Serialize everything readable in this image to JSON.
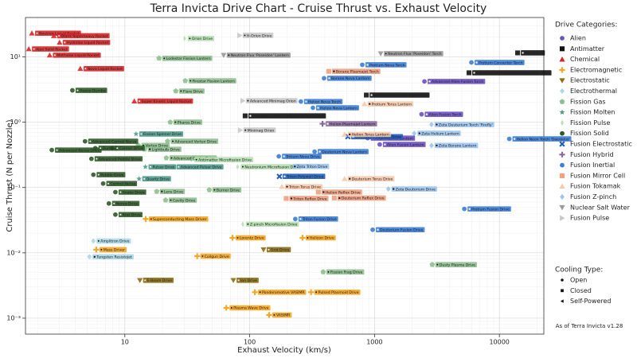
{
  "chart_data": {
    "type": "scatter",
    "title": "Terra Invicta Drive Chart - Cruise Thrust vs. Exhaust Velocity",
    "xlabel": "Exhaust Velocity (km/s)",
    "ylabel": "Cruise Thrust (N per Nozzle)",
    "log_x": true,
    "log_y": true,
    "grid": true,
    "xlim": [
      1.6,
      22700
    ],
    "ylim": [
      0.00057,
      40
    ],
    "xticks": [
      10,
      100,
      1000,
      10000
    ],
    "yticks": [
      {
        "value": 0.001,
        "label": "10⁻³"
      },
      {
        "value": 0.01,
        "label": "10⁻²"
      },
      {
        "value": 0.1,
        "label": "10⁻¹"
      },
      {
        "value": 1,
        "label": "10⁰"
      },
      {
        "value": 10,
        "label": "10¹"
      }
    ],
    "legend_title": "Drive Categories:",
    "legend_position": "right",
    "cooling_title": "Cooling Type:",
    "cooling_types": [
      {
        "name": "Open",
        "marker": "circle"
      },
      {
        "name": "Closed",
        "marker": "square"
      },
      {
        "name": "Self-Powered",
        "marker": "tri-left"
      }
    ],
    "footnote": "As of Terra Invicta v1.28",
    "series": [
      {
        "name": "Alien",
        "color": "#6a4fc7",
        "marker": "circle",
        "x": [
          2510,
          2380,
          880,
          1100
        ],
        "values": [
          4.2,
          1.32,
          0.57,
          0.456
        ],
        "labels": [
          "Advanced Alien Fusion Torch",
          "Alien Fusion Torch",
          "Alien Plasma Lantern",
          "Alien Fusion Lantern"
        ],
        "cooling": [
          "Closed",
          "Closed",
          "Closed",
          "Closed"
        ]
      },
      {
        "name": "Antimatter",
        "color": "#111111",
        "marker": "square",
        "x": [
          14000,
          5710,
          860,
          92
        ],
        "values": [
          11.5,
          5.7,
          2.6,
          1.25
        ],
        "labels": [
          "Pion Torch",
          "Advanced Antimatter Plasma Core Torch",
          "Antimatter Plasma Core Torch",
          "Antimatter Pulsed Plasma Core Lantern"
        ],
        "cooling": [
          "Closed",
          "Closed",
          "Closed",
          "Closed"
        ]
      },
      {
        "name": "Chemical",
        "color": "#d62728",
        "marker": "tri-up",
        "x": [
          1.8,
          2.7,
          3.0,
          1.7,
          2.5,
          4.4,
          11.9
        ],
        "values": [
          23,
          21,
          16.6,
          13.2,
          10.6,
          6.6,
          2.1
        ],
        "labels": [
          "Neutron Liquid Rocket",
          "Olaris Superheavy Rocket",
          "Hydrolox Liquid Rocket",
          "Ajax Solid Rocket",
          "Methalox Liquid Rocket",
          "Nova Liquid Rocket",
          "Super Kinetic Liquid Rocket"
        ],
        "cooling": [
          "Open",
          "Open",
          "Open",
          "Open",
          "Open",
          "Open",
          "Open"
        ]
      },
      {
        "name": "Electromagnetic",
        "color": "#f5a623",
        "marker": "plus",
        "x": [
          14.7,
          72.8,
          265,
          5.9,
          38,
          110,
          310,
          65,
          143
        ],
        "values": [
          0.033,
          0.017,
          0.017,
          0.0112,
          0.0089,
          0.0025,
          0.0025,
          0.00144,
          0.00112
        ],
        "labels": [
          "Superconducting Mass Driver",
          "Lorentz Drive",
          "Helicon Drive",
          "Mass Driver",
          "Coilgun Drive",
          "Ponderomotive VASIMR",
          "Pulsed Plasmoid Drive",
          "Plasma Wave Drive",
          "VASIMR"
        ],
        "cooling": [
          "Self-Powered",
          "Open",
          "Open",
          "Open",
          "Self-Powered",
          "Open",
          "Open",
          "Open",
          "Open"
        ]
      },
      {
        "name": "Electrostatic",
        "color": "#8b6d14",
        "marker": "tri-down",
        "x": [
          129,
          74,
          13.2
        ],
        "values": [
          0.0112,
          0.0038,
          0.0038
        ],
        "labels": [
          "Grid Drive",
          "Ion Drive",
          "E-Beam Drive"
        ],
        "cooling": [
          "Open",
          "Open",
          "Open"
        ]
      },
      {
        "name": "Electrothermal",
        "color": "#a9d8e6",
        "marker": "diamond",
        "x": [
          5.2,
          5.6
        ],
        "values": [
          0.0087,
          0.0152
        ],
        "labels": [
          "Tungsten Resistojet",
          "Amplitron Drive"
        ],
        "cooling": [
          "Closed",
          "Open"
        ]
      },
      {
        "name": "Fission Gas",
        "color": "#8fbf8f",
        "marker": "pentagon",
        "x": [
          18.8,
          30.5,
          25.6,
          23.1,
          12.8,
          22,
          14.4,
          21.5,
          18,
          21.2,
          47.5,
          2900,
          388
        ],
        "values": [
          9.5,
          4.3,
          2.99,
          1.0,
          0.44,
          0.51,
          0.385,
          0.283,
          0.087,
          0.064,
          0.092,
          0.0066,
          0.0051
        ],
        "labels": [
          "Lodestar Fission Lantern",
          "Firestar Fission Lantern",
          "Flare Drive",
          "Pharos Drive",
          "Vortex Drive",
          "Advanced Vortex Drive",
          "Lightbulb Drive",
          "Advanced Cavity Drive",
          "Lens Drive",
          "Cavity Drive",
          "Burner Drive",
          "Dusty Plasma Drive",
          "Fission Frag Drive"
        ],
        "cooling": [
          "Open",
          "Open",
          "Open",
          "Open",
          "Open",
          "Open",
          "Closed",
          "Open",
          "Closed",
          "Open",
          "Open",
          "Open",
          "Open"
        ]
      },
      {
        "name": "Fission Molten",
        "color": "#4f9a8a",
        "marker": "star",
        "x": [
          12.3,
          14.6,
          24.5,
          13
        ],
        "values": [
          0.66,
          0.207,
          0.207,
          0.136
        ],
        "labels": [
          "Fission Spinner Drive",
          "Pulsar Drive",
          "Advanced Pulsar Drive",
          "Quartz Drive"
        ],
        "cooling": [
          "Open",
          "Open",
          "Open",
          "Open"
        ]
      },
      {
        "name": "Fission Pulse",
        "color": "#b5e0b0",
        "marker": "thin-diamond",
        "x": [
          30.1,
          34,
          80,
          88
        ],
        "values": [
          19.1,
          0.267,
          0.208,
          0.0275
        ],
        "labels": [
          "Orion Drive",
          "Antimatter Microfission Drive",
          "Neutronium Microfission Drive",
          "Z-pinch Microfission Drive"
        ],
        "cooling": [
          "Open",
          "Open",
          "Open",
          "Open"
        ]
      },
      {
        "name": "Fission Solid",
        "color": "#2d5a27",
        "marker": "circle",
        "x": [
          3.8,
          4.8,
          2.6,
          5.8,
          7.9,
          5.4,
          5.6,
          6.7,
          8.4,
          7.45,
          8.4
        ],
        "values": [
          3.07,
          0.51,
          0.374,
          0.4,
          0.4,
          0.275,
          0.157,
          0.115,
          0.085,
          0.057,
          0.0385
        ],
        "labels": [
          "Heavy Dumbo",
          "Advanced Carmel Nerva",
          "Advanced Nerva Drive",
          "Dumbo",
          "Carmel Drive",
          "Advanced Pebble Drive",
          "Pebble Drive",
          "Carmel Nerva",
          "Snake Drive",
          "Nerva Drive",
          "Kiwi Drive"
        ],
        "cooling": [
          "Open",
          "Open",
          "Open",
          "Open",
          "Open",
          "Open",
          "Open",
          "Open",
          "Open",
          "Open",
          "Open"
        ]
      },
      {
        "name": "Fusion Electrostatic",
        "color": "#1f5fbf",
        "marker": "x",
        "x": [
          173,
          612
        ],
        "values": [
          0.148,
          0.6
        ],
        "labels": [
          "Triton Polywell Drive",
          "Deuterium Polywell Drive"
        ],
        "cooling": [
          "Closed",
          "Closed"
        ]
      },
      {
        "name": "Fusion Hybrid",
        "color": "#8a6a9e",
        "marker": "plus",
        "x": [
          383
        ],
        "values": [
          0.945
        ],
        "labels": [
          "Helion Plasmajet Lantern"
        ],
        "cooling": [
          "Closed"
        ]
      },
      {
        "name": "Fusion Inertial",
        "color": "#3b7dd8",
        "marker": "circle",
        "x": [
          798,
          5970,
          394,
          321,
          257,
          331,
          171,
          232,
          966,
          5240,
          12000
        ],
        "values": [
          7.55,
          8.2,
          4.7,
          1.66,
          2.07,
          0.354,
          0.3,
          0.033,
          0.0226,
          0.047,
          0.555
        ],
        "labels": [
          "Protium Nova Torch",
          "Protium Converter Torch",
          "Borane Nova Lantern",
          "Helion Nova Lantern",
          "Helion Nova Torch",
          "Deuterium Nova Lantern",
          "Tritium Nova Drive",
          "Triton Fusion Drive",
          "Deuterium Fusion Drive",
          "Protium Fusion Drive",
          "Helion Neon Torch 'Daedalus'"
        ],
        "cooling": [
          "Closed",
          "Closed",
          "Closed",
          "Closed",
          "Closed",
          "Closed",
          "Closed",
          "Closed",
          "Closed",
          "Closed",
          "Closed"
        ]
      },
      {
        "name": "Fusion Mirror Cell",
        "color": "#f0a080",
        "marker": "square",
        "x": [
          430,
          355,
          476,
          196
        ],
        "values": [
          6.0,
          0.085,
          0.069,
          0.068
        ],
        "labels": [
          "Borane Plasmajet Torch",
          "Helion Reflex Drive",
          "Deuterium Reflex Drive",
          "Triton Reflex Drive"
        ],
        "cooling": [
          "Closed",
          "Closed",
          "Closed",
          "Closed"
        ]
      },
      {
        "name": "Fusion Tokamak",
        "color": "#f7c8a8",
        "marker": "tri-up",
        "x": [
          575,
          830,
          575,
          181
        ],
        "values": [
          0.65,
          1.9,
          0.136,
          0.103
        ],
        "labels": [
          "Helion Torus Lantern",
          "Protium Torus Lantern",
          "Deuterium Torus Drive",
          "Triton Torus Drive"
        ],
        "cooling": [
          "Closed",
          "Closed",
          "Closed",
          "Closed"
        ]
      },
      {
        "name": "Fusion Z-pinch",
        "color": "#9cc4ee",
        "marker": "diamond",
        "x": [
          2860,
          2860,
          2080,
          1290,
          209
        ],
        "values": [
          0.92,
          0.44,
          0.675,
          0.095,
          0.21
        ],
        "labels": [
          "Zeta Deuterium Torch 'Firefly'",
          "Zeta Borane Lantern",
          "Zeta Helium Lantern",
          "Zeta Deuterium Drive",
          "Zeta Triton Drive"
        ],
        "cooling": [
          "Closed",
          "Closed",
          "Closed",
          "Closed",
          "Closed"
        ]
      },
      {
        "name": "Nuclear Salt Water",
        "color": "#999999",
        "marker": "tri-down",
        "x": [
          61.8,
          1120
        ],
        "values": [
          10.6,
          11.2
        ],
        "labels": [
          "Neutron Flux 'Poseidon' Lantern",
          "Neutron Flux 'Poseidon' Torch"
        ],
        "cooling": [
          "Open",
          "Open"
        ]
      },
      {
        "name": "Fusion Pulse",
        "color": "#c8c8c8",
        "marker": "tri-right",
        "x": [
          83,
          88,
          84
        ],
        "values": [
          21.3,
          2.13,
          0.755
        ],
        "labels": [
          "H-Orion Drive",
          "Advanced Minimag Orion",
          "Minimag Orion"
        ],
        "cooling": [
          "Open",
          "Open",
          "Open"
        ]
      }
    ]
  }
}
